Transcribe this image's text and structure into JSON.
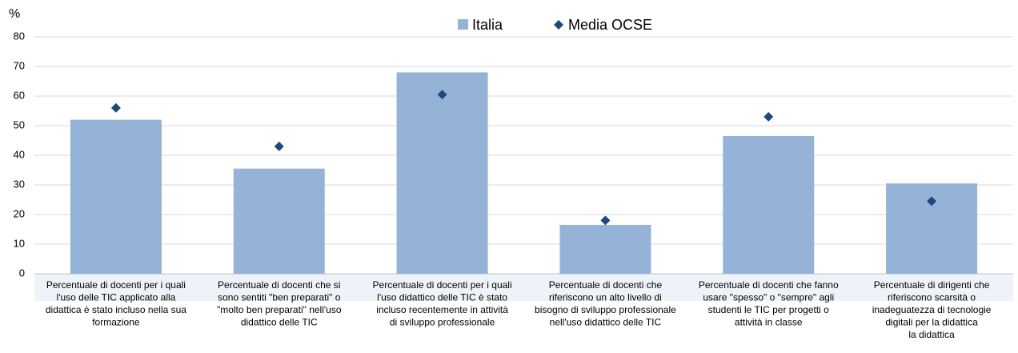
{
  "chart_data": {
    "type": "bar",
    "y_axis_label": "%",
    "categories": [
      [
        "Percentuale di docenti per i quali",
        "l'uso delle TIC applicato alla",
        "didattica è stato incluso nella sua",
        "formazione"
      ],
      [
        "Percentuale di docenti che si",
        "sono sentiti \"ben preparati\" o",
        "\"molto ben preparati\" nell'uso",
        "didattico delle TIC"
      ],
      [
        "Percentuale di docenti per i quali",
        "l'uso didattico delle TIC è stato",
        "incluso recentemente in attività",
        "di sviluppo professionale"
      ],
      [
        "Percentuale di docenti che",
        "riferiscono un alto livello di",
        "bisogno di sviluppo professionale",
        "nell'uso didattico delle TIC"
      ],
      [
        "Percentuale di docenti che fanno",
        "usare \"spesso\" o \"sempre\" agli",
        "studenti le TIC per progetti o",
        "attività in classe"
      ],
      [
        "Percentuale di dirigenti che",
        "riferiscono scarsità o",
        "inadeguatezza di tecnologie",
        "digitali per la didattica",
        "la didattica"
      ]
    ],
    "series": [
      {
        "name": "Italia",
        "type": "bar",
        "color": "#95b3d7",
        "values": [
          52,
          35.5,
          68,
          16.5,
          46.5,
          30.5
        ]
      },
      {
        "name": "Media OCSE",
        "type": "scatter",
        "marker": "diamond",
        "color": "#1f497d",
        "values": [
          56,
          43,
          60.5,
          18,
          53,
          24.5
        ]
      }
    ],
    "ylim": [
      0,
      80
    ],
    "yticks": [
      0,
      10,
      20,
      30,
      40,
      50,
      60,
      70,
      80
    ],
    "grid": true,
    "legend": "top"
  }
}
